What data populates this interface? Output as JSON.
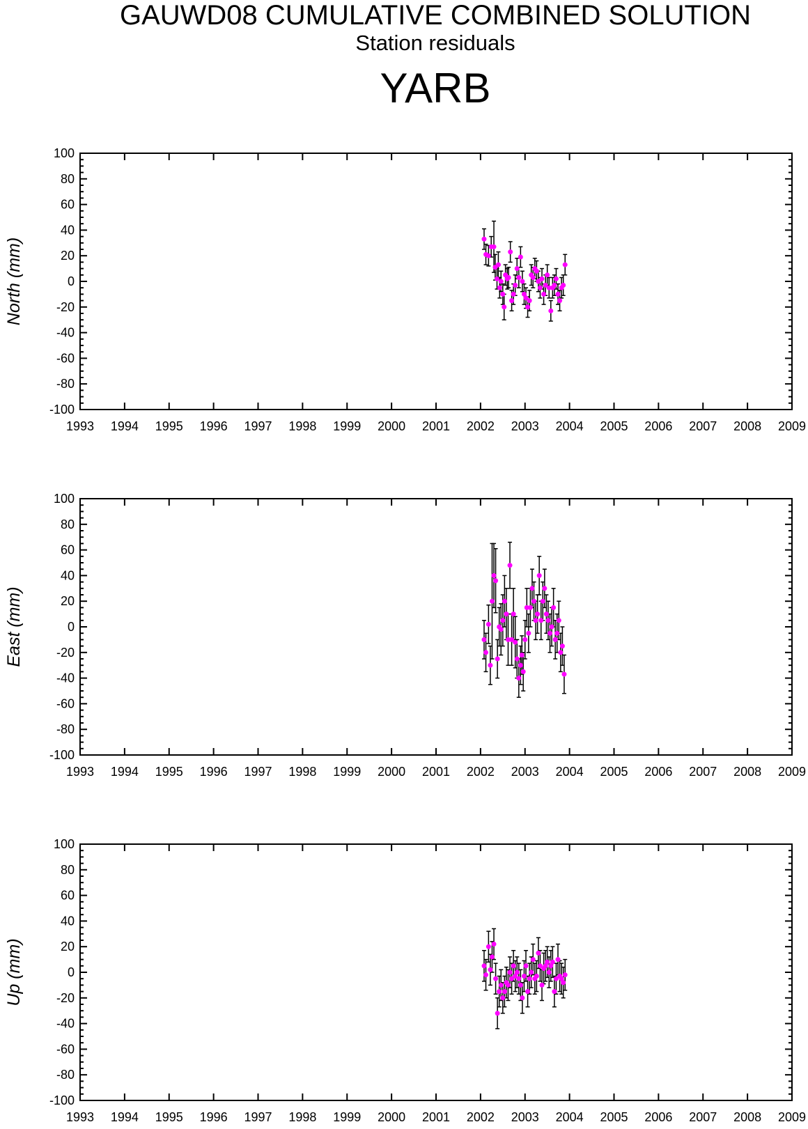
{
  "header": {
    "title": "GAUWD08 CUMULATIVE COMBINED SOLUTION",
    "subtitle": "Station residuals",
    "station": "YARB"
  },
  "colors": {
    "point": "#ff00ff",
    "errorbar": "#000000",
    "axis": "#000000"
  },
  "chart_data": [
    {
      "type": "scatter",
      "ylabel": "North (mm)",
      "xlim": [
        1993,
        2009
      ],
      "ylim": [
        -100,
        100
      ],
      "x_ticks": [
        "1993",
        "1994",
        "1995",
        "1996",
        "1997",
        "1998",
        "1999",
        "2000",
        "2001",
        "2002",
        "2003",
        "2004",
        "2005",
        "2006",
        "2007",
        "2008",
        "2009"
      ],
      "y_ticks": [
        "100",
        "80",
        "60",
        "40",
        "20",
        "0",
        "-20",
        "-40",
        "-60",
        "-80",
        "-100"
      ],
      "series": [
        {
          "x": [
            2002.08,
            2002.12,
            2002.18,
            2002.24,
            2002.3,
            2002.33,
            2002.37,
            2002.4,
            2002.43,
            2002.46,
            2002.5,
            2002.53,
            2002.56,
            2002.6,
            2002.63,
            2002.67,
            2002.7,
            2002.74,
            2002.78,
            2002.82,
            2002.86,
            2002.9,
            2002.94,
            2002.98,
            2003.02,
            2003.06,
            2003.1,
            2003.14,
            2003.18,
            2003.22,
            2003.26,
            2003.3,
            2003.34,
            2003.38,
            2003.42,
            2003.46,
            2003.5,
            2003.54,
            2003.58,
            2003.62,
            2003.66,
            2003.7,
            2003.74,
            2003.78,
            2003.82,
            2003.86,
            2003.9
          ],
          "y": [
            33,
            21,
            20,
            27,
            27,
            11,
            2,
            13,
            -5,
            0,
            -10,
            -20,
            5,
            2,
            3,
            23,
            -15,
            -10,
            -3,
            10,
            3,
            19,
            0,
            -10,
            -13,
            -20,
            -15,
            5,
            3,
            10,
            8,
            0,
            -5,
            2,
            -10,
            -3,
            5,
            -5,
            -23,
            -5,
            -3,
            2,
            -10,
            -15,
            -5,
            -3,
            13
          ],
          "err": [
            8,
            8,
            8,
            8,
            20,
            10,
            8,
            10,
            8,
            8,
            8,
            10,
            8,
            8,
            8,
            8,
            8,
            8,
            8,
            8,
            8,
            8,
            8,
            8,
            8,
            8,
            8,
            8,
            8,
            8,
            8,
            8,
            8,
            8,
            8,
            8,
            8,
            8,
            8,
            8,
            8,
            8,
            8,
            8,
            8,
            8,
            8
          ]
        }
      ]
    },
    {
      "type": "scatter",
      "ylabel": "East (mm)",
      "xlim": [
        1993,
        2009
      ],
      "ylim": [
        -100,
        100
      ],
      "x_ticks": [
        "1993",
        "1994",
        "1995",
        "1996",
        "1997",
        "1998",
        "1999",
        "2000",
        "2001",
        "2002",
        "2003",
        "2004",
        "2005",
        "2006",
        "2007",
        "2008",
        "2009"
      ],
      "y_ticks": [
        "100",
        "80",
        "60",
        "40",
        "20",
        "0",
        "-20",
        "-40",
        "-60",
        "-80",
        "-100"
      ],
      "series": [
        {
          "x": [
            2002.08,
            2002.12,
            2002.18,
            2002.22,
            2002.26,
            2002.3,
            2002.34,
            2002.38,
            2002.42,
            2002.46,
            2002.5,
            2002.54,
            2002.58,
            2002.62,
            2002.66,
            2002.7,
            2002.74,
            2002.78,
            2002.82,
            2002.86,
            2002.9,
            2002.93,
            2002.96,
            2003.0,
            2003.04,
            2003.08,
            2003.12,
            2003.16,
            2003.2,
            2003.24,
            2003.28,
            2003.32,
            2003.36,
            2003.4,
            2003.44,
            2003.48,
            2003.52,
            2003.56,
            2003.6,
            2003.64,
            2003.68,
            2003.72,
            2003.76,
            2003.8,
            2003.84,
            2003.88
          ],
          "y": [
            -10,
            -20,
            2,
            -30,
            20,
            40,
            36,
            -25,
            0,
            -2,
            5,
            20,
            10,
            -10,
            48,
            -10,
            10,
            -12,
            -25,
            -40,
            -30,
            -22,
            -35,
            -10,
            15,
            -5,
            15,
            30,
            20,
            5,
            10,
            40,
            5,
            20,
            30,
            10,
            5,
            -5,
            0,
            15,
            -10,
            -5,
            5,
            -20,
            -15,
            -37
          ],
          "err": [
            15,
            15,
            15,
            15,
            45,
            25,
            25,
            15,
            15,
            20,
            20,
            20,
            20,
            20,
            18,
            20,
            20,
            20,
            15,
            15,
            15,
            15,
            15,
            15,
            15,
            15,
            15,
            15,
            15,
            15,
            15,
            15,
            15,
            15,
            15,
            15,
            15,
            15,
            15,
            15,
            15,
            15,
            15,
            15,
            15,
            15
          ]
        }
      ]
    },
    {
      "type": "scatter",
      "ylabel": "Up (mm)",
      "xlim": [
        1993,
        2009
      ],
      "ylim": [
        -100,
        100
      ],
      "x_ticks": [
        "1993",
        "1994",
        "1995",
        "1996",
        "1997",
        "1998",
        "1999",
        "2000",
        "2001",
        "2002",
        "2003",
        "2004",
        "2005",
        "2006",
        "2007",
        "2008",
        "2009"
      ],
      "y_ticks": [
        "100",
        "80",
        "60",
        "40",
        "20",
        "0",
        "-20",
        "-40",
        "-60",
        "-80",
        "-100"
      ],
      "series": [
        {
          "x": [
            2002.08,
            2002.12,
            2002.18,
            2002.22,
            2002.26,
            2002.3,
            2002.34,
            2002.38,
            2002.42,
            2002.46,
            2002.5,
            2002.54,
            2002.58,
            2002.62,
            2002.66,
            2002.7,
            2002.74,
            2002.78,
            2002.82,
            2002.86,
            2002.9,
            2002.94,
            2002.98,
            2003.02,
            2003.06,
            2003.1,
            2003.14,
            2003.18,
            2003.22,
            2003.26,
            2003.3,
            2003.34,
            2003.38,
            2003.42,
            2003.46,
            2003.5,
            2003.54,
            2003.58,
            2003.62,
            2003.66,
            2003.7,
            2003.74,
            2003.78,
            2003.82,
            2003.86,
            2003.9
          ],
          "y": [
            5,
            -2,
            20,
            2,
            12,
            22,
            -5,
            -32,
            -15,
            -10,
            -20,
            -15,
            -8,
            -10,
            0,
            -5,
            5,
            -3,
            0,
            -5,
            -10,
            -20,
            -3,
            5,
            -15,
            -5,
            0,
            10,
            -5,
            -3,
            15,
            5,
            -10,
            3,
            5,
            8,
            0,
            5,
            8,
            -15,
            -5,
            10,
            -3,
            -5,
            -8,
            -2
          ],
          "err": [
            12,
            12,
            12,
            12,
            12,
            12,
            12,
            12,
            12,
            12,
            12,
            12,
            12,
            12,
            12,
            12,
            12,
            12,
            12,
            12,
            12,
            12,
            12,
            12,
            12,
            12,
            12,
            12,
            12,
            12,
            12,
            12,
            12,
            12,
            12,
            12,
            12,
            12,
            12,
            12,
            12,
            12,
            12,
            12,
            12,
            12
          ]
        }
      ]
    }
  ]
}
